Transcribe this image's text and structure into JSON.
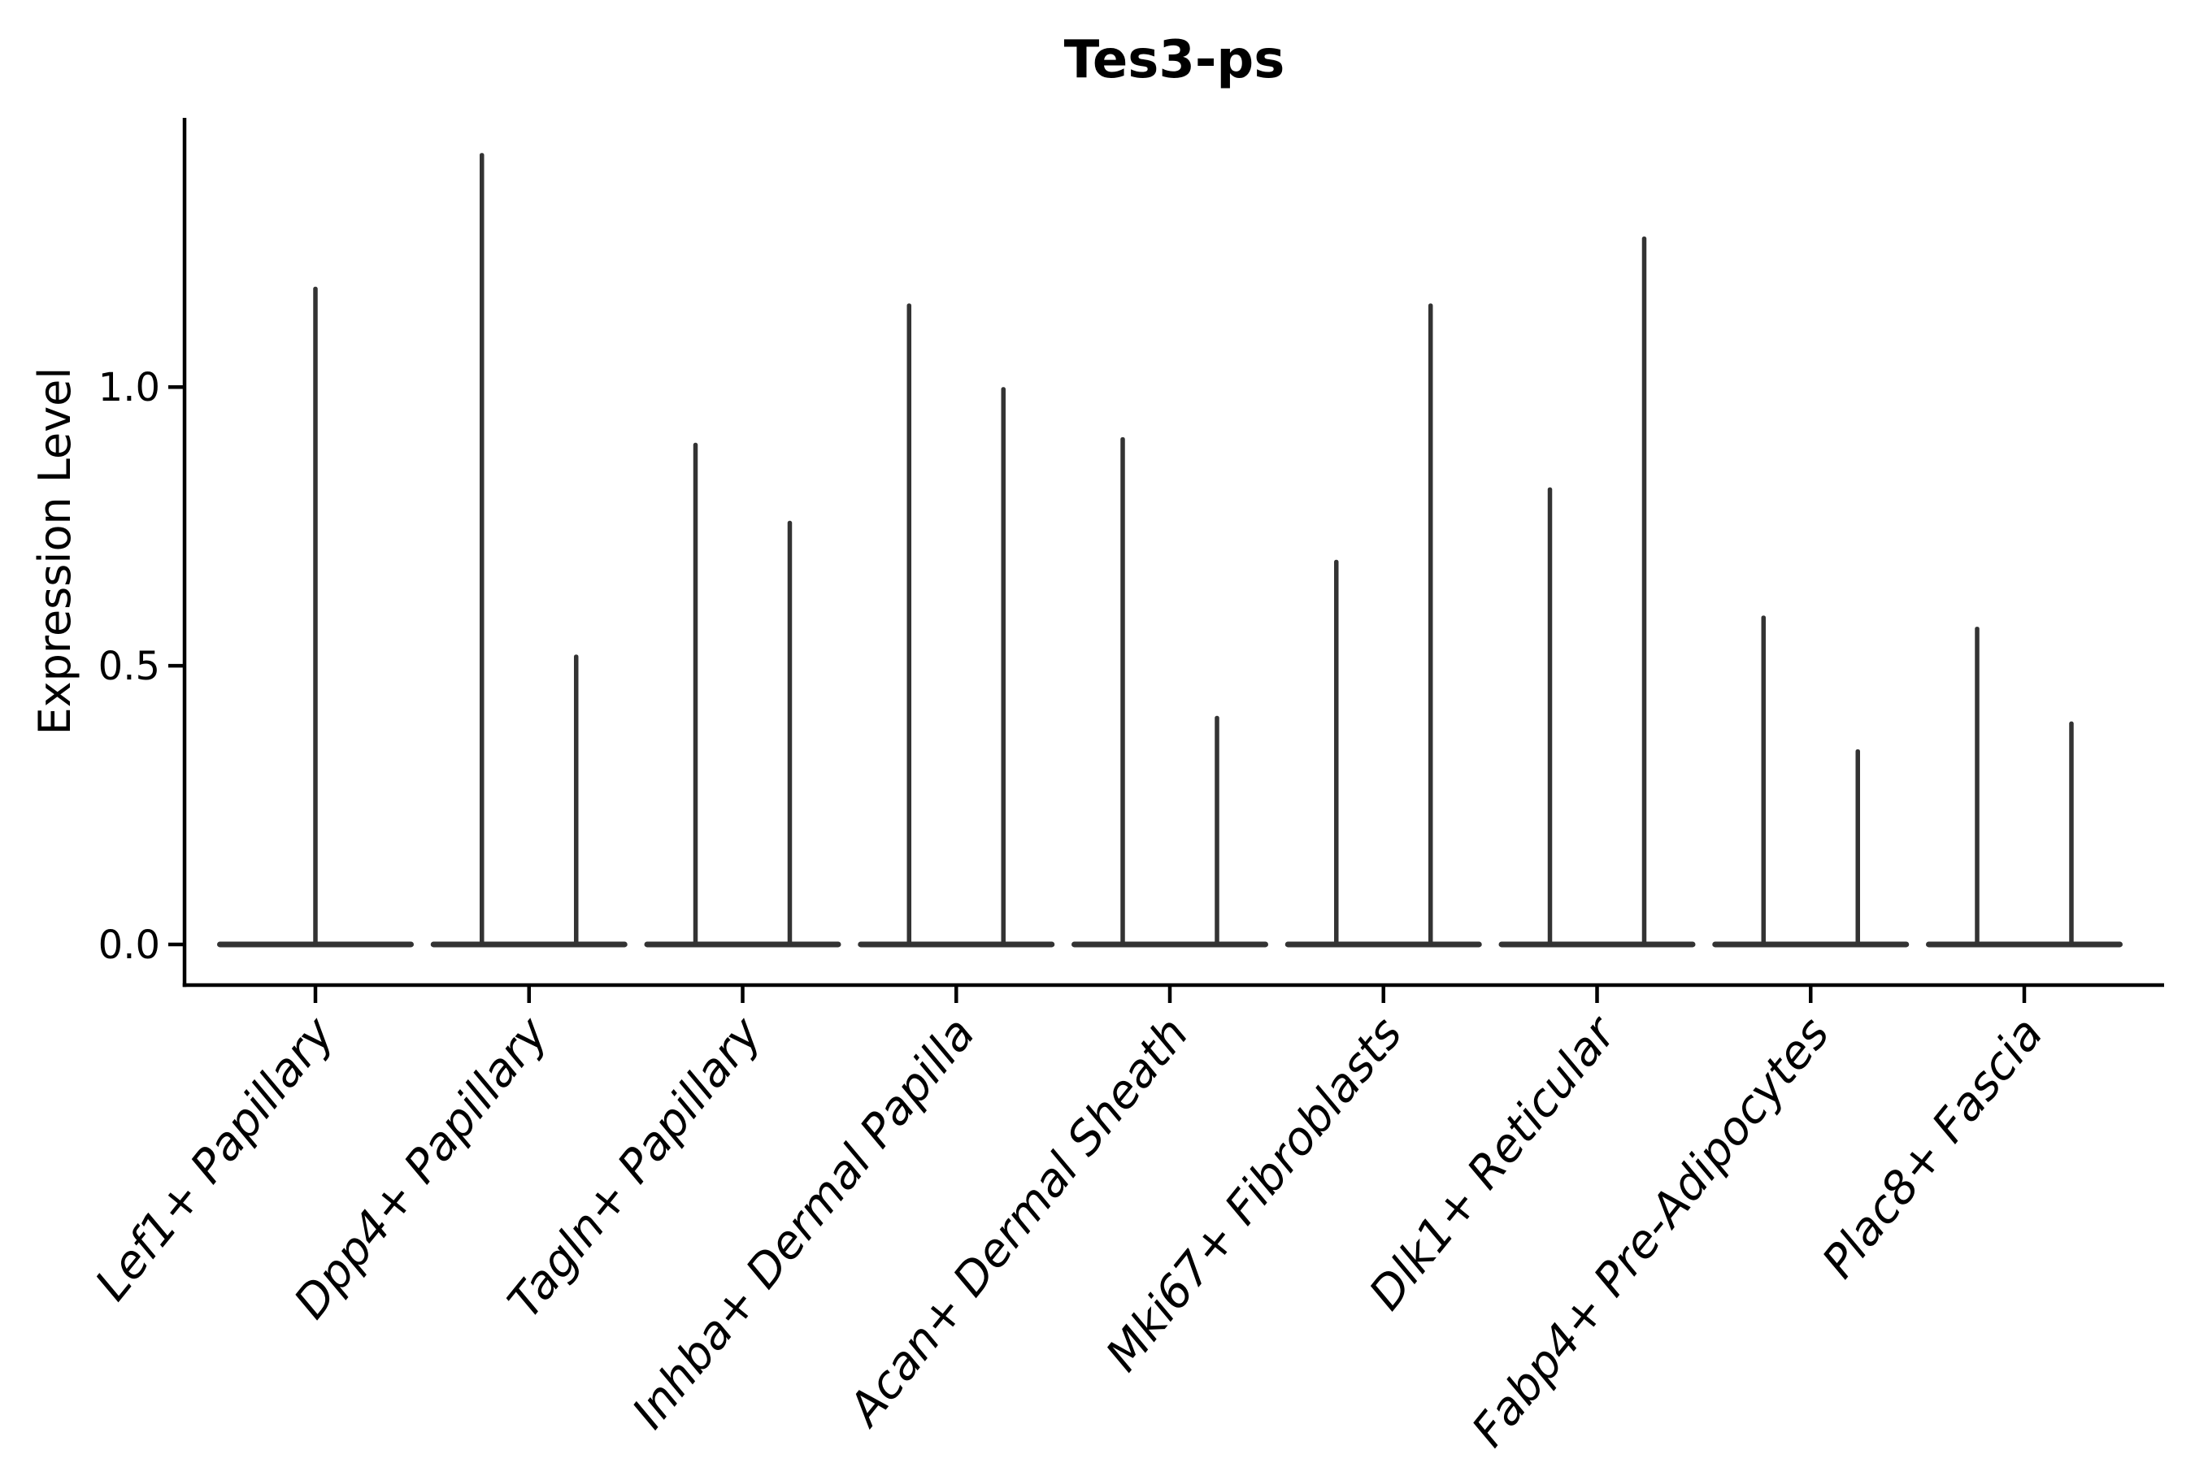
{
  "figure": {
    "background": "#ffffff",
    "text_color": "#000000",
    "violin_color": "#333333",
    "axis_color": "#000000"
  },
  "chart_data": {
    "type": "violin",
    "title": "Tes3-ps",
    "xlabel": "",
    "ylabel": "Expression Level",
    "ylim": [
      -0.073,
      1.483
    ],
    "yticks": [
      0.0,
      0.5,
      1.0
    ],
    "ytick_labels": [
      "0.0",
      "0.5",
      "1.0"
    ],
    "grid": false,
    "legend": null,
    "categories": [
      "Lef1+ Papillary",
      "Dpp4+ Papillary",
      "Tagln+ Papillary",
      "Inhba+ Dermal Papilla",
      "Acan+ Dermal Sheath",
      "Mki67+ Fibroblasts",
      "Dlk1+ Reticular",
      "Fabp4+ Pre-Adipocytes",
      "Plac8+ Fascia"
    ],
    "baseline_value": 0.0,
    "violins": [
      {
        "category": "Lef1+ Papillary",
        "spikes": [
          {
            "position": "center",
            "max": 1.18
          }
        ]
      },
      {
        "category": "Dpp4+ Papillary",
        "spikes": [
          {
            "position": "left",
            "max": 1.42
          },
          {
            "position": "right",
            "max": 0.52
          }
        ]
      },
      {
        "category": "Tagln+ Papillary",
        "spikes": [
          {
            "position": "left",
            "max": 0.9
          },
          {
            "position": "right",
            "max": 0.76
          }
        ]
      },
      {
        "category": "Inhba+ Dermal Papilla",
        "spikes": [
          {
            "position": "left",
            "max": 1.15
          },
          {
            "position": "right",
            "max": 1.0
          }
        ]
      },
      {
        "category": "Acan+ Dermal Sheath",
        "spikes": [
          {
            "position": "left",
            "max": 0.91
          },
          {
            "position": "right",
            "max": 0.41
          }
        ]
      },
      {
        "category": "Mki67+ Fibroblasts",
        "spikes": [
          {
            "position": "left",
            "max": 0.69
          },
          {
            "position": "right",
            "max": 1.15
          }
        ]
      },
      {
        "category": "Dlk1+ Reticular",
        "spikes": [
          {
            "position": "left",
            "max": 0.82
          },
          {
            "position": "right",
            "max": 1.27
          }
        ]
      },
      {
        "category": "Fabp4+ Pre-Adipocytes",
        "spikes": [
          {
            "position": "left",
            "max": 0.59
          },
          {
            "position": "right",
            "max": 0.35
          }
        ]
      },
      {
        "category": "Plac8+ Fascia",
        "spikes": [
          {
            "position": "left",
            "max": 0.57
          },
          {
            "position": "right",
            "max": 0.4
          }
        ]
      }
    ]
  }
}
